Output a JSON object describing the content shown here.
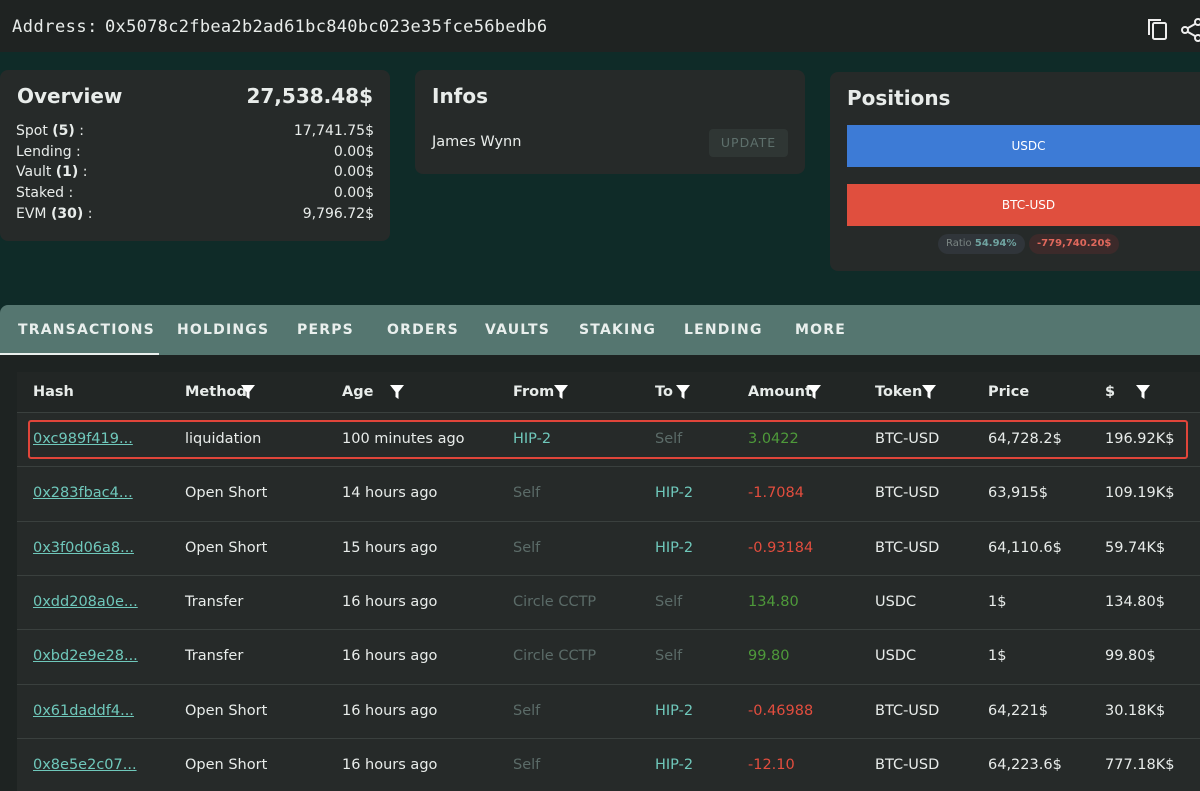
{
  "header": {
    "label": "Address:",
    "address": "0x5078c2fbea2b2ad61bc840bc023e35fce56bedb6"
  },
  "overview": {
    "title": "Overview",
    "total": "27,538.48$",
    "rows": [
      {
        "label": "Spot",
        "count": "(5)",
        "colon": ":",
        "value": "17,741.75$"
      },
      {
        "label": "Lending",
        "colon": ":",
        "value": "0.00$"
      },
      {
        "label": "Vault",
        "count": "(1)",
        "colon": ":",
        "value": "0.00$"
      },
      {
        "label": "Staked",
        "colon": ":",
        "value": "0.00$"
      },
      {
        "label": "EVM",
        "count": "(30)",
        "colon": ":",
        "value": "9,796.72$"
      }
    ]
  },
  "infos": {
    "title": "Infos",
    "name": "James Wynn",
    "button": "UPDATE"
  },
  "positions": {
    "title": "Positions",
    "bars": [
      {
        "label": "USDC",
        "color": "#3d7bd6"
      },
      {
        "label": "BTC-USD",
        "color": "#e04f3e"
      }
    ],
    "ratio_label": "Ratio",
    "ratio": "54.94%",
    "pnl": "-779,740.20$"
  },
  "tabs": {
    "items": [
      "TRANSACTIONS",
      "HOLDINGS",
      "PERPS",
      "ORDERS",
      "VAULTS",
      "STAKING",
      "LENDING",
      "MORE"
    ],
    "active": 0
  },
  "table": {
    "columns": [
      {
        "label": "Hash"
      },
      {
        "label": "Method",
        "filter": true
      },
      {
        "label": "Age",
        "filter": true
      },
      {
        "label": "From",
        "filter": true
      },
      {
        "label": "To",
        "filter": true
      },
      {
        "label": "Amount",
        "filter": true
      },
      {
        "label": "Token",
        "filter": true
      },
      {
        "label": "Price"
      },
      {
        "label": "$",
        "filter": true
      }
    ],
    "highlighted": 0,
    "rows": [
      [
        "0xc989f419...",
        "liquidation",
        "100 minutes ago",
        "HIP-2",
        "Self",
        "3.0422",
        "BTC-USD",
        "64,728.2$",
        "196.92K$"
      ],
      [
        "0x283fbac4...",
        "Open Short",
        "14 hours ago",
        "Self",
        "HIP-2",
        "-1.7084",
        "BTC-USD",
        "63,915$",
        "109.19K$"
      ],
      [
        "0x3f0d06a8...",
        "Open Short",
        "15 hours ago",
        "Self",
        "HIP-2",
        "-0.93184",
        "BTC-USD",
        "64,110.6$",
        "59.74K$"
      ],
      [
        "0xdd208a0e...",
        "Transfer",
        "16 hours ago",
        "Circle CCTP",
        "Self",
        "134.80",
        "USDC",
        "1$",
        "134.80$"
      ],
      [
        "0xbd2e9e28...",
        "Transfer",
        "16 hours ago",
        "Circle CCTP",
        "Self",
        "99.80",
        "USDC",
        "1$",
        "99.80$"
      ],
      [
        "0x61daddf4...",
        "Open Short",
        "16 hours ago",
        "Self",
        "HIP-2",
        "-0.46988",
        "BTC-USD",
        "64,221$",
        "30.18K$"
      ],
      [
        "0x8e5e2c07...",
        "Open Short",
        "16 hours ago",
        "Self",
        "HIP-2",
        "-12.10",
        "BTC-USD",
        "64,223.6$",
        "777.18K$"
      ]
    ]
  }
}
